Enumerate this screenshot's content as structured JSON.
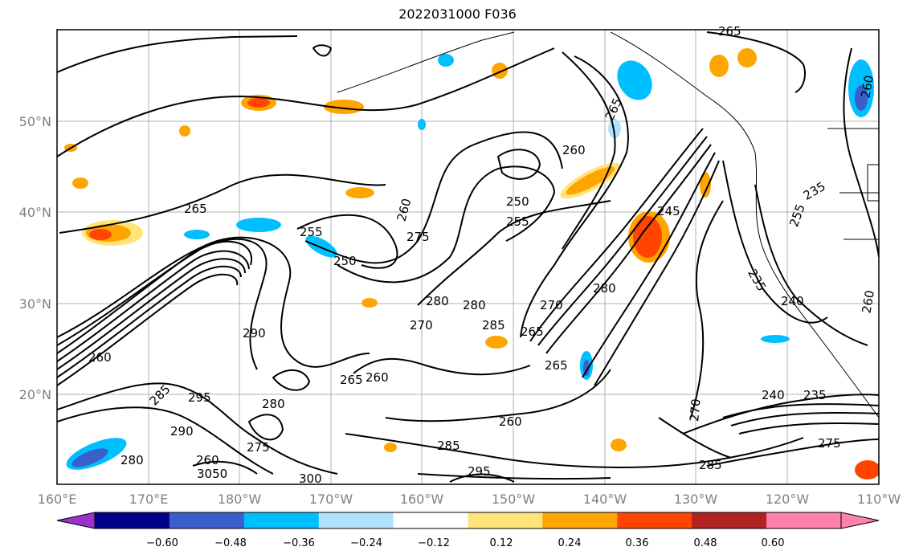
{
  "title": "2022031000 F036",
  "lat_labels": [
    "50°N",
    "40°N",
    "30°N",
    "20°N"
  ],
  "lon_labels": [
    "160°E",
    "170°E",
    "180°W",
    "170°W",
    "160°W",
    "150°W",
    "140°W",
    "130°W",
    "120°W",
    "110°W"
  ],
  "colorbar": {
    "ticks": [
      "−0.60",
      "−0.48",
      "−0.36",
      "−0.24",
      "−0.12",
      "0.12",
      "0.24",
      "0.36",
      "0.48",
      "0.60"
    ],
    "colors": [
      "#9a32cd",
      "#00008b",
      "#3a5fcd",
      "#00bfff",
      "#b0e2ff",
      "#ffffff",
      "#ffe47a",
      "#ffa500",
      "#ff4500",
      "#b22222",
      "#ff82ab",
      "#ff82ab"
    ]
  },
  "contour_labels": [
    {
      "text": "265"
    },
    {
      "text": "260"
    },
    {
      "text": "260"
    },
    {
      "text": "265"
    },
    {
      "text": "250"
    },
    {
      "text": "255"
    },
    {
      "text": "275"
    },
    {
      "text": "255"
    },
    {
      "text": "250"
    },
    {
      "text": "245"
    },
    {
      "text": "280"
    },
    {
      "text": "280"
    },
    {
      "text": "285"
    },
    {
      "text": "270"
    },
    {
      "text": "280"
    },
    {
      "text": "265"
    },
    {
      "text": "290"
    },
    {
      "text": "270"
    },
    {
      "text": "265"
    },
    {
      "text": "260"
    },
    {
      "text": "295"
    },
    {
      "text": "280"
    },
    {
      "text": "290"
    },
    {
      "text": "275"
    },
    {
      "text": "260"
    },
    {
      "text": "280"
    },
    {
      "text": "3050"
    },
    {
      "text": "300"
    },
    {
      "text": "260"
    },
    {
      "text": "295"
    },
    {
      "text": "285"
    },
    {
      "text": "275"
    },
    {
      "text": "285"
    },
    {
      "text": "270"
    },
    {
      "text": "235"
    },
    {
      "text": "240"
    },
    {
      "text": "240"
    },
    {
      "text": "235"
    },
    {
      "text": "255"
    },
    {
      "text": "235"
    },
    {
      "text": "260"
    },
    {
      "text": "260"
    },
    {
      "text": "265"
    },
    {
      "text": "260"
    },
    {
      "text": "285"
    },
    {
      "text": "265"
    }
  ]
}
